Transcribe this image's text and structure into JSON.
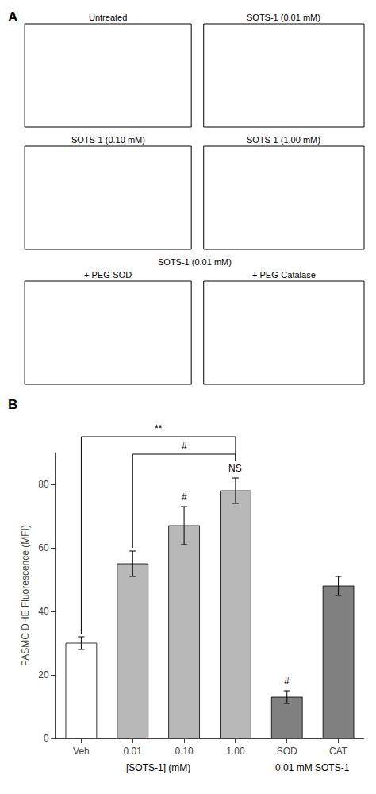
{
  "chart_data": [
    {
      "type": "image_grid",
      "title": "A",
      "annotations": {
        "image_labels": [
          [
            "Untreated",
            "SOTS-1 (0.01 mM)"
          ],
          [
            "SOTS-1 (0.10 mM)",
            "SOTS-1 (1.00 mM)"
          ],
          [
            "+ PEG-SOD",
            "+ PEG-Catalase"
          ]
        ],
        "row_headers": [
          null,
          null,
          "SOTS-1 (0.01 mM)"
        ]
      }
    },
    {
      "type": "bar",
      "title": "B",
      "categories": [
        "Veh",
        "0.01",
        "0.10",
        "1.00",
        "SOD",
        "CAT"
      ],
      "values": [
        30,
        55,
        67,
        78,
        13,
        48
      ],
      "errors": [
        2,
        4,
        6,
        4,
        2,
        3
      ],
      "colors": [
        "#ffffff",
        "#b8b8b8",
        "#b8b8b8",
        "#b8b8b8",
        "#808080",
        "#808080"
      ],
      "ylabel": "PASMC DHE Fluorescence (MFI)",
      "xlabel": [
        {
          "text": "[SOTS-1] (mM)",
          "from": "Veh",
          "to": "1.00"
        },
        {
          "text": "0.01 mM SOTS-1",
          "from": "SOD",
          "to": "CAT"
        }
      ],
      "ylim": [
        0,
        90
      ],
      "yticks": [
        0,
        20,
        40,
        60,
        80
      ],
      "grid": false,
      "annotations": [
        {
          "text": "#",
          "category": "0.10"
        },
        {
          "text": "#",
          "category": "SOD"
        },
        {
          "text": "NS",
          "category": "1.00"
        },
        {
          "text": "**",
          "from": "Veh",
          "to": "1.00"
        },
        {
          "text": "#",
          "from": "0.01",
          "to": "1.00"
        }
      ]
    }
  ]
}
